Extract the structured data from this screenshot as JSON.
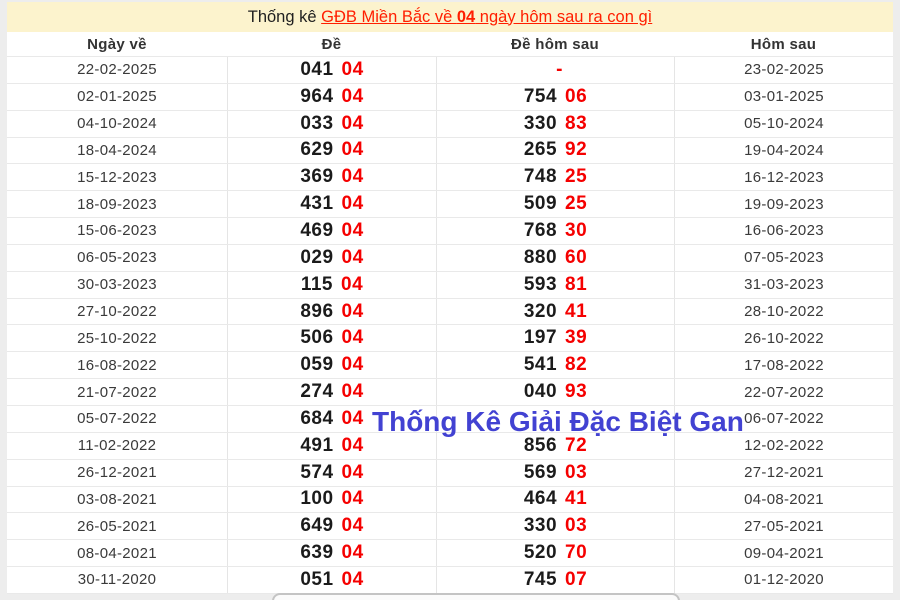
{
  "theme": {
    "page_background": "#ededed",
    "title_background": "#fcf3cd",
    "link_red": "#ff1e00",
    "digit_red": "#f50000",
    "digit_black": "#1b1b1b",
    "watermark_blue": "#4242d2"
  },
  "title": {
    "prefix": "Thống kê ",
    "link_pre": "GĐB Miền Bắc về ",
    "link_bold": "04",
    "link_post": " ngày hôm sau ra con gì"
  },
  "table": {
    "columns": [
      "Ngày về",
      "Đề",
      "Đề hôm sau",
      "Hôm sau"
    ],
    "rows": [
      {
        "date": "22-02-2025",
        "de": "041",
        "de_hit": "04",
        "next": "",
        "next_hit": "-",
        "next_date": "23-02-2025"
      },
      {
        "date": "02-01-2025",
        "de": "964",
        "de_hit": "04",
        "next": "754",
        "next_hit": "06",
        "next_date": "03-01-2025"
      },
      {
        "date": "04-10-2024",
        "de": "033",
        "de_hit": "04",
        "next": "330",
        "next_hit": "83",
        "next_date": "05-10-2024"
      },
      {
        "date": "18-04-2024",
        "de": "629",
        "de_hit": "04",
        "next": "265",
        "next_hit": "92",
        "next_date": "19-04-2024"
      },
      {
        "date": "15-12-2023",
        "de": "369",
        "de_hit": "04",
        "next": "748",
        "next_hit": "25",
        "next_date": "16-12-2023"
      },
      {
        "date": "18-09-2023",
        "de": "431",
        "de_hit": "04",
        "next": "509",
        "next_hit": "25",
        "next_date": "19-09-2023"
      },
      {
        "date": "15-06-2023",
        "de": "469",
        "de_hit": "04",
        "next": "768",
        "next_hit": "30",
        "next_date": "16-06-2023"
      },
      {
        "date": "06-05-2023",
        "de": "029",
        "de_hit": "04",
        "next": "880",
        "next_hit": "60",
        "next_date": "07-05-2023"
      },
      {
        "date": "30-03-2023",
        "de": "115",
        "de_hit": "04",
        "next": "593",
        "next_hit": "81",
        "next_date": "31-03-2023"
      },
      {
        "date": "27-10-2022",
        "de": "896",
        "de_hit": "04",
        "next": "320",
        "next_hit": "41",
        "next_date": "28-10-2022"
      },
      {
        "date": "25-10-2022",
        "de": "506",
        "de_hit": "04",
        "next": "197",
        "next_hit": "39",
        "next_date": "26-10-2022"
      },
      {
        "date": "16-08-2022",
        "de": "059",
        "de_hit": "04",
        "next": "541",
        "next_hit": "82",
        "next_date": "17-08-2022"
      },
      {
        "date": "21-07-2022",
        "de": "274",
        "de_hit": "04",
        "next": "040",
        "next_hit": "93",
        "next_date": "22-07-2022"
      },
      {
        "date": "05-07-2022",
        "de": "684",
        "de_hit": "04",
        "next": "",
        "next_hit": "",
        "next_date": "06-07-2022"
      },
      {
        "date": "11-02-2022",
        "de": "491",
        "de_hit": "04",
        "next": "856",
        "next_hit": "72",
        "next_date": "12-02-2022"
      },
      {
        "date": "26-12-2021",
        "de": "574",
        "de_hit": "04",
        "next": "569",
        "next_hit": "03",
        "next_date": "27-12-2021"
      },
      {
        "date": "03-08-2021",
        "de": "100",
        "de_hit": "04",
        "next": "464",
        "next_hit": "41",
        "next_date": "04-08-2021"
      },
      {
        "date": "26-05-2021",
        "de": "649",
        "de_hit": "04",
        "next": "330",
        "next_hit": "03",
        "next_date": "27-05-2021"
      },
      {
        "date": "08-04-2021",
        "de": "639",
        "de_hit": "04",
        "next": "520",
        "next_hit": "70",
        "next_date": "09-04-2021"
      },
      {
        "date": "30-11-2020",
        "de": "051",
        "de_hit": "04",
        "next": "745",
        "next_hit": "07",
        "next_date": "01-12-2020"
      }
    ]
  },
  "watermark": {
    "text": "Thống Kê Giải Đặc Biệt Gan"
  }
}
